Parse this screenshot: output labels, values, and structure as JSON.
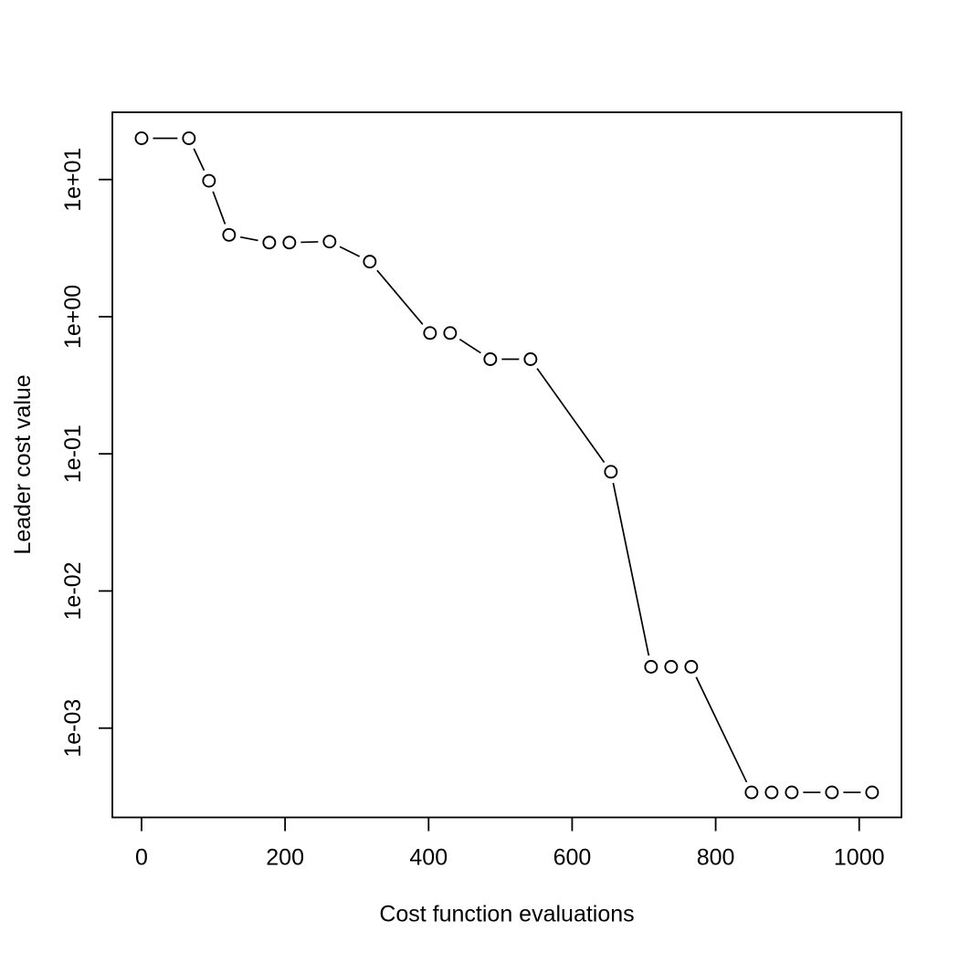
{
  "chart_data": {
    "type": "line",
    "subtype": "points-and-lines-log-y",
    "title": "",
    "xlabel": "Cost function evaluations",
    "ylabel": "Leader cost value",
    "grid": false,
    "legend": false,
    "marker": "open-circle",
    "colors": {
      "line": "#000000",
      "marker": "#000000",
      "background": "#ffffff",
      "text": "#000000"
    },
    "x_ticks": [
      0,
      200,
      400,
      600,
      800,
      1000
    ],
    "y_ticks": [
      {
        "label": "1e+01",
        "value": 10
      },
      {
        "label": "1e+00",
        "value": 1
      },
      {
        "label": "1e-01",
        "value": 0.1
      },
      {
        "label": "1e-02",
        "value": 0.01
      },
      {
        "label": "1e-03",
        "value": 0.001
      }
    ],
    "xlim": [
      -40.7,
      1058.9
    ],
    "ylog_lim": [
      -3.651,
      1.4905
    ],
    "y_scale": "log",
    "points": [
      [
        0,
        20
      ],
      [
        66,
        20
      ],
      [
        94,
        9.8
      ],
      [
        122,
        3.95
      ],
      [
        178,
        3.47
      ],
      [
        206,
        3.47
      ],
      [
        262,
        3.53
      ],
      [
        318,
        2.52
      ],
      [
        402,
        0.76
      ],
      [
        430,
        0.76
      ],
      [
        486,
        0.49
      ],
      [
        542,
        0.49
      ],
      [
        654,
        0.074
      ],
      [
        710,
        0.0028
      ],
      [
        738,
        0.0028
      ],
      [
        766,
        0.0028
      ],
      [
        850,
        0.00034
      ],
      [
        878,
        0.00034
      ],
      [
        906,
        0.00034
      ],
      [
        962,
        0.00034
      ],
      [
        1018,
        0.00034
      ]
    ]
  }
}
